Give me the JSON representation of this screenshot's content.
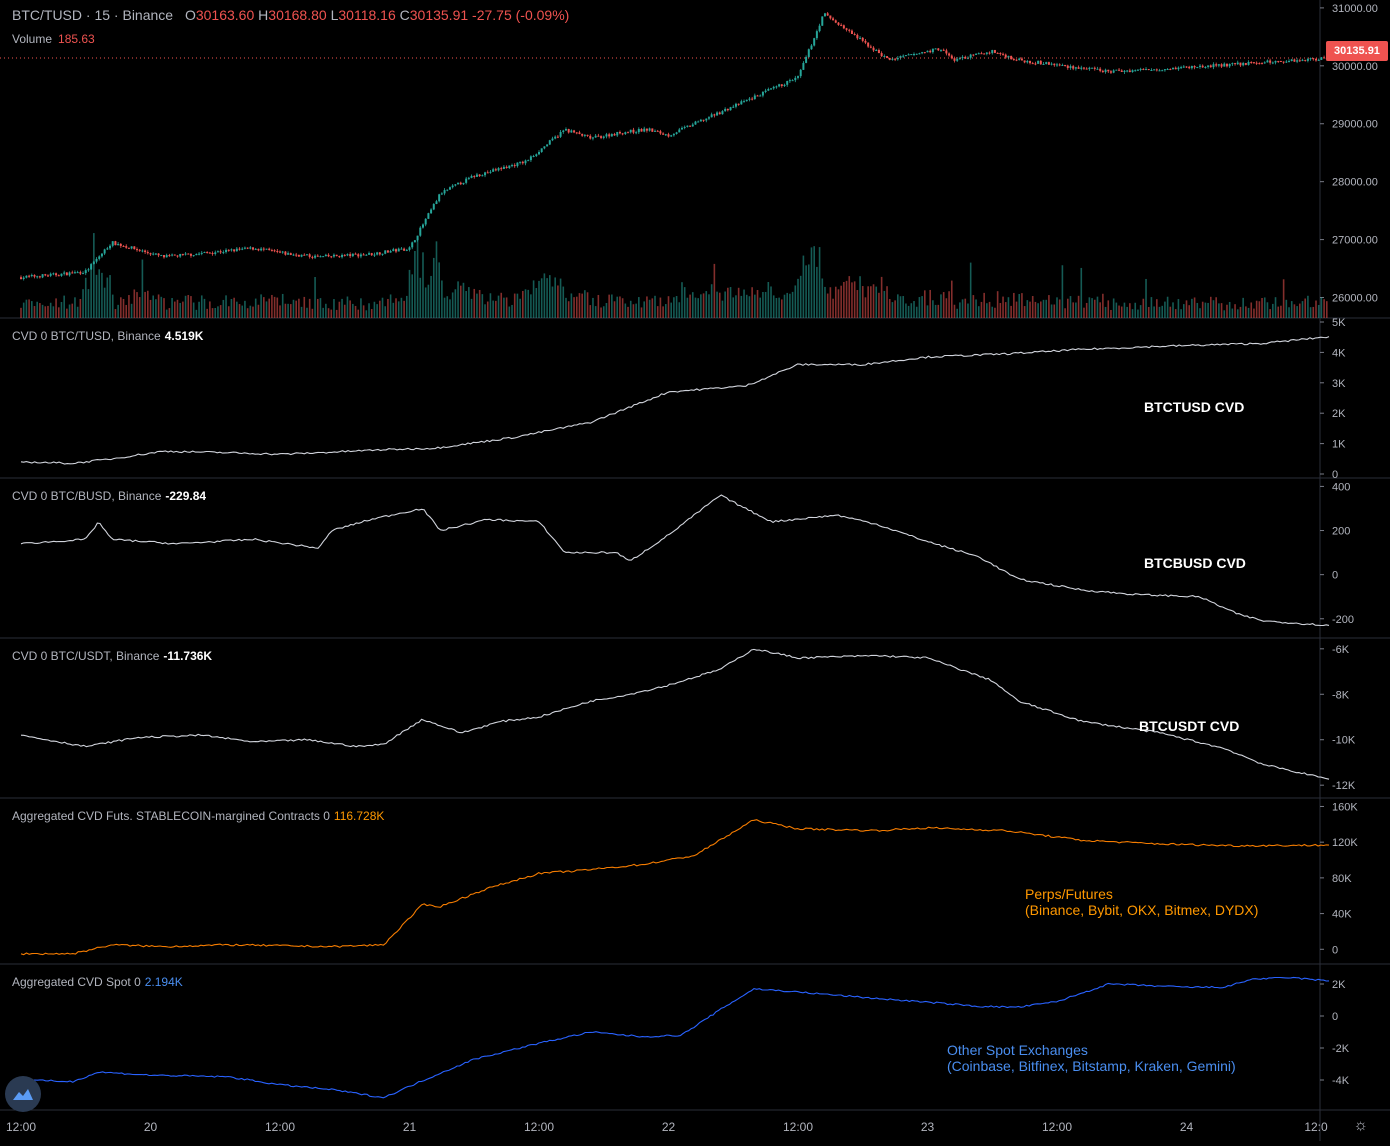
{
  "header": {
    "symbol": "BTC/TUSD",
    "interval": "15",
    "exchange": "Binance",
    "o_label": "O",
    "o_value": "30163.60",
    "h_label": "H",
    "h_value": "30168.80",
    "l_label": "L",
    "l_value": "30118.16",
    "c_label": "C",
    "c_value": "30135.91",
    "change": "-27.75 (-0.09%)",
    "volume_label": "Volume",
    "volume_value": "185.63",
    "last_price_tag": "30135.91"
  },
  "colors": {
    "background": "#000000",
    "up": "#26a69a",
    "down": "#ef5350",
    "cvd_line": "#d1d4dc",
    "futures_line": "#f57c00",
    "spot_line": "#2962ff",
    "futures_text": "#ff9800",
    "spot_text": "#4a8ef0",
    "grid": "#2a2e39"
  },
  "icons": {
    "logo": "tradingview-logo-icon",
    "settings": "gear-icon"
  },
  "time_axis": {
    "labels": [
      "12:00",
      "20",
      "12:00",
      "21",
      "12:00",
      "22",
      "12:00",
      "23",
      "12:00",
      "24",
      "12:0"
    ]
  },
  "chart_data": [
    {
      "type": "candlestick",
      "title": "BTC/TUSD · 15 · Binance",
      "y_ticks": [
        "26000.00",
        "27000.00",
        "28000.00",
        "29000.00",
        "30000.00",
        "31000.00"
      ],
      "ylim": [
        25750,
        31050
      ],
      "anchors_x_days": [
        0.0,
        0.15,
        0.25,
        0.35,
        0.55,
        0.9,
        1.03,
        1.15,
        1.35,
        1.5,
        1.62,
        1.75,
        1.95,
        2.1,
        2.2,
        2.32,
        2.42,
        2.5,
        2.75,
        3.0,
        3.1,
        3.35,
        3.55,
        3.6,
        3.75,
        3.85,
        4.2,
        4.6,
        5.05
      ],
      "anchors_close": [
        26350,
        26400,
        26450,
        26950,
        26700,
        26850,
        26750,
        26700,
        26750,
        26850,
        27800,
        28100,
        28350,
        28900,
        28750,
        28850,
        28900,
        28800,
        29300,
        29800,
        30900,
        30100,
        30300,
        30100,
        30250,
        30100,
        29900,
        30000,
        30136
      ],
      "volume": {
        "note": "Volume overlay at bottom of price pane"
      }
    },
    {
      "type": "line",
      "name": "CVD 0 BTC/TUSD, Binance",
      "value": "4.519K",
      "note": "BTCTUSD CVD",
      "y_ticks": [
        "0",
        "1K",
        "2K",
        "3K",
        "4K",
        "5K"
      ],
      "ylim": [
        0,
        5000
      ],
      "x": [
        0.0,
        0.2,
        0.35,
        0.55,
        0.8,
        1.0,
        1.15,
        1.4,
        1.6,
        1.9,
        2.2,
        2.5,
        2.8,
        3.0,
        3.25,
        3.5,
        3.8,
        4.1,
        4.4,
        4.6,
        4.8,
        5.05
      ],
      "y": [
        400,
        350,
        500,
        750,
        700,
        650,
        700,
        800,
        850,
        1200,
        1700,
        2700,
        2900,
        3600,
        3600,
        3850,
        3950,
        4100,
        4200,
        4250,
        4300,
        4519
      ]
    },
    {
      "type": "line",
      "name": "CVD 0 BTC/BUSD, Binance",
      "value": "-229.84",
      "note": "BTCBUSD CVD",
      "y_ticks": [
        "400",
        "200",
        "0",
        "-200"
      ],
      "ylim": [
        -260,
        420
      ],
      "x": [
        0.0,
        0.25,
        0.3,
        0.35,
        0.6,
        0.9,
        1.15,
        1.2,
        1.35,
        1.55,
        1.62,
        1.8,
        2.0,
        2.1,
        2.3,
        2.35,
        2.5,
        2.7,
        2.83,
        2.9,
        3.15,
        3.3,
        3.5,
        3.7,
        3.85,
        4.1,
        4.3,
        4.55,
        4.7,
        4.8,
        5.05
      ],
      "y": [
        140,
        160,
        240,
        160,
        140,
        160,
        120,
        200,
        250,
        300,
        200,
        250,
        240,
        100,
        100,
        60,
        180,
        360,
        280,
        240,
        270,
        230,
        150,
        80,
        -20,
        -70,
        -90,
        -100,
        -180,
        -210,
        -230
      ]
    },
    {
      "type": "line",
      "name": "CVD 0 BTC/USDT, Binance",
      "value": "-11.736K",
      "note": "BTCUSDT CVD",
      "y_ticks": [
        "-6K",
        "-8K",
        "-10K",
        "-12K"
      ],
      "ylim": [
        -12300,
        -5700
      ],
      "x": [
        0.0,
        0.25,
        0.45,
        0.7,
        0.9,
        1.1,
        1.3,
        1.4,
        1.55,
        1.7,
        1.85,
        2.0,
        2.2,
        2.35,
        2.5,
        2.7,
        2.83,
        3.0,
        3.3,
        3.5,
        3.75,
        3.85,
        4.1,
        4.4,
        4.65,
        4.8,
        5.05
      ],
      "y": [
        -9800,
        -10300,
        -9900,
        -9800,
        -10100,
        -10000,
        -10300,
        -10200,
        -9100,
        -9700,
        -9200,
        -9000,
        -8300,
        -8000,
        -7600,
        -6900,
        -6000,
        -6400,
        -6300,
        -6400,
        -7400,
        -8300,
        -9200,
        -9700,
        -10400,
        -11100,
        -11736
      ]
    },
    {
      "type": "line",
      "name": "Aggregated CVD Futs. STABLECOIN-margined Contracts 0",
      "value": "116.728K",
      "note_lines": [
        "Perps/Futures",
        "(Binance, Bybit, OKX, Bitmex, DYDX)"
      ],
      "y_ticks": [
        "0",
        "40K",
        "80K",
        "120K",
        "160K"
      ],
      "ylim": [
        -12000,
        165000
      ],
      "x": [
        0.0,
        0.2,
        0.35,
        0.55,
        0.8,
        1.0,
        1.2,
        1.4,
        1.55,
        1.62,
        1.8,
        2.0,
        2.15,
        2.4,
        2.6,
        2.83,
        3.0,
        3.3,
        3.5,
        3.8,
        4.1,
        4.4,
        4.7,
        5.05
      ],
      "y": [
        -5000,
        -5000,
        5000,
        3000,
        5000,
        4000,
        3000,
        5000,
        50000,
        48000,
        68000,
        85000,
        88000,
        95000,
        105000,
        145000,
        135000,
        133000,
        136000,
        133000,
        122000,
        118000,
        116000,
        116728
      ]
    },
    {
      "type": "line",
      "name": "Aggregated CVD Spot 0",
      "value": "2.194K",
      "note_lines": [
        "Other Spot Exchanges",
        "(Coinbase, Bitfinex, Bitstamp, Kraken, Gemini)"
      ],
      "y_ticks": [
        "2K",
        "0",
        "-2K",
        "-4K"
      ],
      "ylim": [
        -5500,
        3000
      ],
      "x": [
        0.0,
        0.2,
        0.3,
        0.5,
        0.8,
        1.0,
        1.2,
        1.4,
        1.6,
        1.75,
        2.0,
        2.2,
        2.4,
        2.55,
        2.7,
        2.83,
        3.0,
        3.3,
        3.55,
        3.7,
        3.85,
        4.0,
        4.2,
        4.5,
        4.65,
        4.75,
        4.9,
        5.05
      ],
      "y": [
        -4000,
        -4100,
        -3500,
        -3700,
        -3800,
        -4300,
        -4600,
        -5100,
        -3700,
        -2700,
        -1700,
        -1000,
        -1300,
        -1200,
        400,
        1700,
        1500,
        1100,
        800,
        600,
        550,
        900,
        2000,
        1800,
        1800,
        2300,
        2400,
        2194
      ]
    }
  ]
}
